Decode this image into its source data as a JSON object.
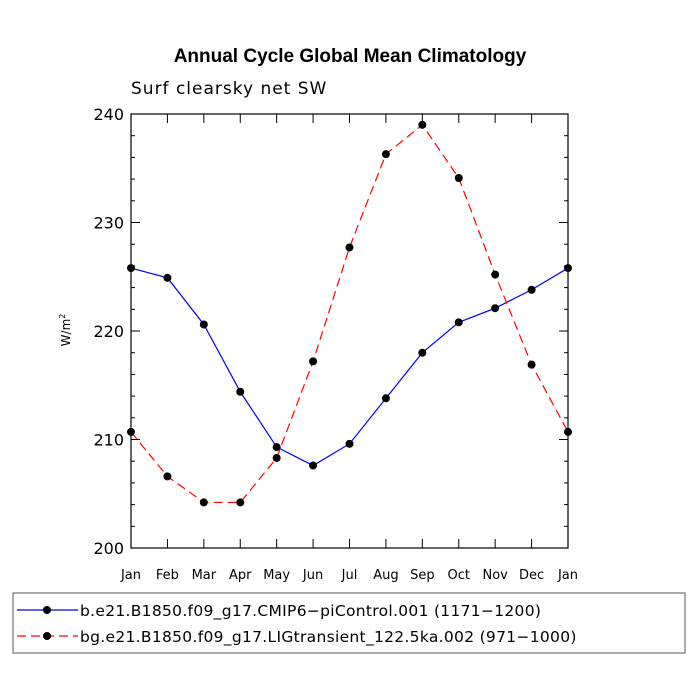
{
  "chart_data": {
    "type": "line",
    "title": "Annual Cycle Global Mean Climatology",
    "subtitle": "Surf clearsky net SW",
    "ylabel": "W/m",
    "ylabel_superscript": "2",
    "ylim": [
      200,
      240
    ],
    "yticks": [
      200,
      210,
      220,
      230,
      240
    ],
    "ytick_labels": [
      "200",
      "210",
      "220",
      "230",
      "240"
    ],
    "categories": [
      "Jan",
      "Feb",
      "Mar",
      "Apr",
      "May",
      "Jun",
      "Jul",
      "Aug",
      "Sep",
      "Oct",
      "Nov",
      "Dec",
      "Jan"
    ],
    "grid": false,
    "legend_position": "bottom",
    "series": [
      {
        "name": "b.e21.B1850.f09_g17.CMIP6−piControl.001 (1171−1200)",
        "color": "#0000ff",
        "dash": "solid",
        "marker": "filled-circle",
        "values": [
          225.8,
          224.9,
          220.6,
          214.4,
          209.3,
          207.6,
          209.6,
          213.8,
          218.0,
          220.8,
          222.1,
          223.8,
          225.8
        ]
      },
      {
        "name": "bg.e21.B1850.f09_g17.LIGtransient_122.5ka.002 (971−1000)",
        "color": "#ff0000",
        "dash": "dashed",
        "marker": "filled-circle",
        "values": [
          210.7,
          206.6,
          204.2,
          204.2,
          208.3,
          217.2,
          227.7,
          236.3,
          239.0,
          234.1,
          225.2,
          216.9,
          210.7
        ]
      }
    ]
  }
}
